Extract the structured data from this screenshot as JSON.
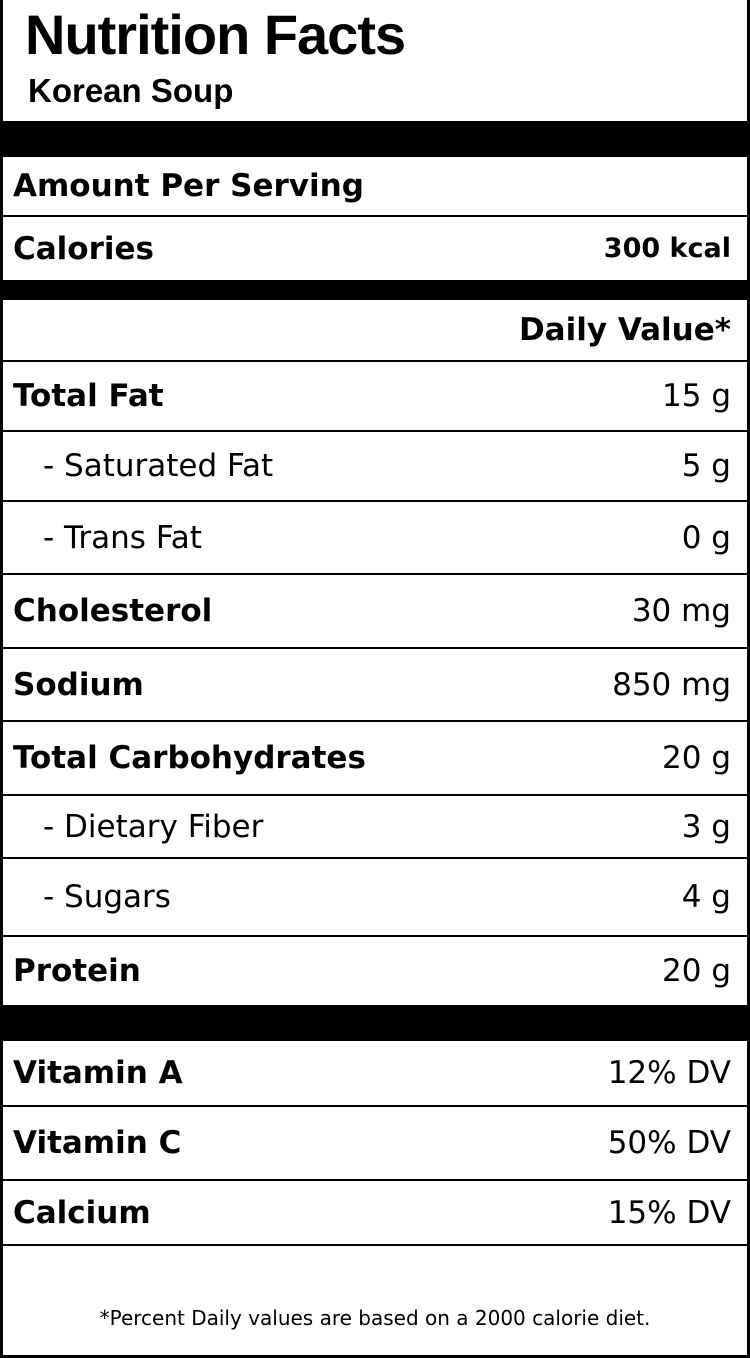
{
  "title": "Nutrition Facts",
  "subtitle": "Korean Soup",
  "amount_per_serving": "Amount Per Serving",
  "calories": {
    "label": "Calories",
    "value": "300 kcal"
  },
  "daily_value_header": "Daily Value*",
  "nutrients": [
    {
      "label": "Total Fat",
      "value": "15 g"
    },
    {
      "label": "- Saturated Fat",
      "value": "5 g"
    },
    {
      "label": "- Trans Fat",
      "value": "0 g"
    },
    {
      "label": "Cholesterol",
      "value": "30 mg"
    },
    {
      "label": "Sodium",
      "value": "850 mg"
    },
    {
      "label": "Total Carbohydrates",
      "value": "20 g"
    },
    {
      "label": "- Dietary Fiber",
      "value": "3 g"
    },
    {
      "label": "- Sugars",
      "value": "4 g"
    },
    {
      "label": "Protein",
      "value": "20 g"
    }
  ],
  "vitamins": [
    {
      "label": "Vitamin A",
      "value": "12% DV"
    },
    {
      "label": "Vitamin C",
      "value": "50% DV"
    },
    {
      "label": "Calcium",
      "value": "15% DV"
    }
  ],
  "footnote": "*Percent Daily values are based on a 2000 calorie diet."
}
